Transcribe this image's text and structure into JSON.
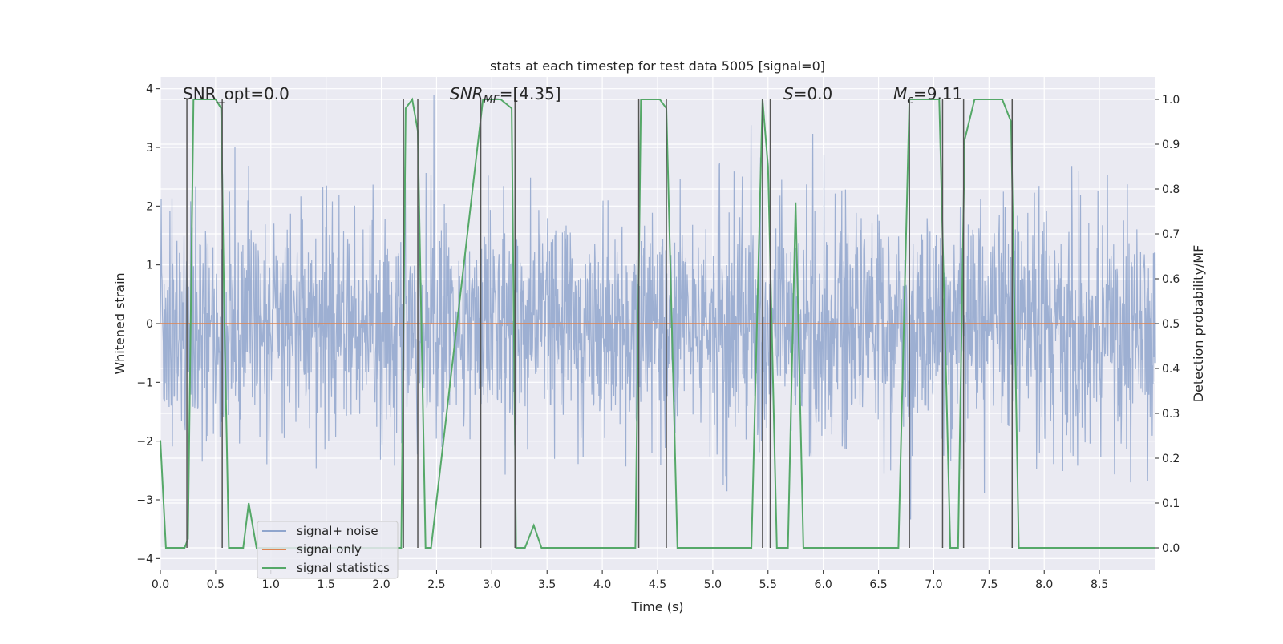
{
  "chart_data": {
    "type": "line",
    "title": "stats at each timestep for test data 5005 [signal=0]",
    "xlabel": "Time (s)",
    "ylabel_left": "Whitened strain",
    "ylabel_right": "Detection probability/MF",
    "xlim": [
      0.0,
      9.0
    ],
    "ylim_left": [
      -4.2,
      4.2
    ],
    "ylim_right": [
      -0.05,
      1.05
    ],
    "x_ticks": [
      0.0,
      0.5,
      1.0,
      1.5,
      2.0,
      2.5,
      3.0,
      3.5,
      4.0,
      4.5,
      5.0,
      5.5,
      6.0,
      6.5,
      7.0,
      7.5,
      8.0,
      8.5
    ],
    "x_tick_labels": [
      "0.0",
      "0.5",
      "1.0",
      "1.5",
      "2.0",
      "2.5",
      "3.0",
      "3.5",
      "4.0",
      "4.5",
      "5.0",
      "5.5",
      "6.0",
      "6.5",
      "7.0",
      "7.5",
      "8.0",
      "8.5"
    ],
    "y_left_ticks": [
      4,
      3,
      2,
      1,
      0,
      -1,
      -2,
      -3,
      -4
    ],
    "y_left_tick_labels": [
      "4",
      "3",
      "2",
      "1",
      "0",
      "−1",
      "−2",
      "−3",
      "−4"
    ],
    "y_right_ticks": [
      1.0,
      0.9,
      0.8,
      0.7,
      0.6,
      0.5,
      0.4,
      0.3,
      0.2,
      0.1,
      0.0
    ],
    "y_right_tick_labels": [
      "1.0",
      "0.9",
      "0.8",
      "0.7",
      "0.6",
      "0.5",
      "0.4",
      "0.3",
      "0.2",
      "0.1",
      "0.0"
    ],
    "annotations": {
      "snr_opt": "SNR_opt=0.0",
      "snr_mf_base": "SNR",
      "snr_mf_sub": "MF",
      "snr_mf_value": "=[4.35]",
      "s_base": "S",
      "s_value": "=0.0",
      "mc_base": "M",
      "mc_sub": "c",
      "mc_value": "=9.11"
    },
    "legend": {
      "position": "lower-left",
      "entries": [
        {
          "label": "signal+ noise",
          "color": "#8fa5cd"
        },
        {
          "label": "signal only",
          "color": "#dd8452"
        },
        {
          "label": "signal statistics",
          "color": "#55a868"
        }
      ]
    },
    "series": [
      {
        "name": "signal+ noise",
        "color": "#8fa5cd",
        "description": "whitened noisy strain, gaussian noise approx std 1.0 over 0-9 s"
      },
      {
        "name": "signal only",
        "color": "#dd8452",
        "x": [
          0.0,
          9.0
        ],
        "y": [
          0.0,
          0.0
        ]
      },
      {
        "name": "signal statistics",
        "color": "#55a868",
        "x": [
          0.0,
          0.05,
          0.15,
          0.22,
          0.25,
          0.3,
          0.5,
          0.55,
          0.58,
          0.62,
          0.7,
          0.75,
          0.8,
          0.87,
          0.95,
          1.5,
          1.9,
          2.0,
          2.1,
          2.18,
          2.22,
          2.28,
          2.33,
          2.4,
          2.45,
          2.92,
          2.98,
          3.08,
          3.18,
          3.22,
          3.3,
          3.38,
          3.45,
          3.7,
          4.3,
          4.35,
          4.52,
          4.58,
          4.68,
          5.35,
          5.45,
          5.5,
          5.58,
          5.68,
          5.75,
          5.82,
          5.88,
          5.98,
          6.68,
          6.78,
          6.95,
          7.05,
          7.15,
          7.22,
          7.28,
          7.37,
          7.62,
          7.7,
          7.77,
          9.0
        ],
        "y": [
          0.24,
          0.0,
          0.0,
          0.0,
          0.02,
          1.0,
          1.0,
          0.98,
          0.5,
          0.0,
          0.0,
          0.0,
          0.1,
          0.0,
          0.0,
          0.0,
          0.0,
          0.0,
          0.0,
          0.0,
          0.98,
          1.0,
          0.93,
          0.0,
          0.0,
          1.0,
          1.0,
          1.0,
          0.98,
          0.0,
          0.0,
          0.05,
          0.0,
          0.0,
          0.0,
          1.0,
          1.0,
          0.98,
          0.0,
          0.0,
          1.0,
          0.85,
          0.0,
          0.0,
          0.77,
          0.0,
          0.0,
          0.0,
          0.0,
          1.0,
          1.0,
          1.0,
          0.0,
          0.0,
          0.91,
          1.0,
          1.0,
          0.95,
          0.0,
          0.0
        ]
      }
    ],
    "vertical_markers": [
      0.24,
      0.56,
      2.2,
      2.33,
      2.9,
      3.21,
      4.33,
      4.58,
      5.45,
      5.52,
      6.78,
      7.08,
      7.27,
      7.71
    ]
  }
}
